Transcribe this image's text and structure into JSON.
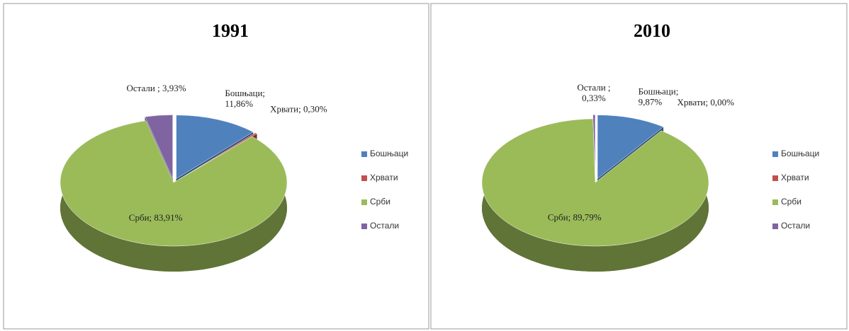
{
  "chart_data": [
    {
      "type": "pie",
      "title": "1991",
      "categories": [
        "Бошњаци",
        "Хрвати",
        "Срби",
        "Остали"
      ],
      "values": [
        11.86,
        0.3,
        83.91,
        3.93
      ],
      "value_labels": [
        "Бошњаци;\n11,86%",
        "Хрвати; 0,30%",
        "Срби; 83,91%",
        "Остали ; 3,93%"
      ],
      "colors": [
        "#4f81bd",
        "#c0504d",
        "#9bbb59",
        "#8064a2"
      ],
      "legend": "right"
    },
    {
      "type": "pie",
      "title": "2010",
      "categories": [
        "Бошњаци",
        "Хрвати",
        "Срби",
        "Остали"
      ],
      "values": [
        9.87,
        0.0,
        89.79,
        0.33
      ],
      "value_labels": [
        "Бошњаци;\n9,87%",
        "Хрвати; 0,00%",
        "Срби; 89,79%",
        "Остали ;\n0,33%"
      ],
      "colors": [
        "#4f81bd",
        "#c0504d",
        "#9bbb59",
        "#8064a2"
      ],
      "legend": "right"
    }
  ]
}
